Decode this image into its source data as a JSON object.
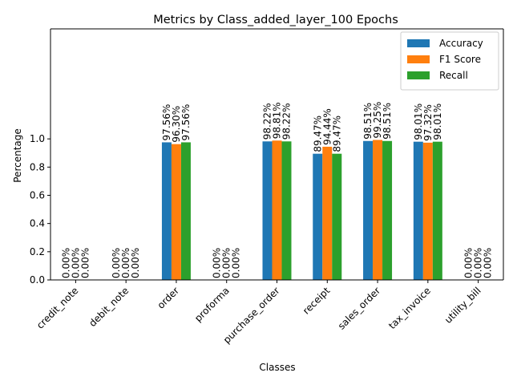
{
  "chart_data": {
    "type": "bar",
    "title": "Metrics by Class_added_layer_100 Epochs",
    "xlabel": "Classes",
    "ylabel": "Percentage",
    "ylim": [
      0,
      1.78
    ],
    "yticks": [
      0.0,
      0.2,
      0.4,
      0.6,
      0.8,
      1.0
    ],
    "ytick_labels": [
      "0.0",
      "0.2",
      "0.4",
      "0.6",
      "0.8",
      "1.0"
    ],
    "categories": [
      "credit_note",
      "debit_note",
      "order",
      "proforma",
      "purchase_order",
      "receipt",
      "sales_order",
      "tax_invoice",
      "utility_bill"
    ],
    "series": [
      {
        "name": "Accuracy",
        "color": "#1f77b4",
        "values": [
          0.0,
          0.0,
          0.9756,
          0.0,
          0.9822,
          0.8947,
          0.9851,
          0.9801,
          0.0
        ],
        "labels": [
          "0.00%",
          "0.00%",
          "97.56%",
          "0.00%",
          "98.22%",
          "89.47%",
          "98.51%",
          "98.01%",
          "0.00%"
        ]
      },
      {
        "name": "F1 Score",
        "color": "#ff7f0e",
        "values": [
          0.0,
          0.0,
          0.963,
          0.0,
          0.9881,
          0.9444,
          0.9925,
          0.9732,
          0.0
        ],
        "labels": [
          "0.00%",
          "0.00%",
          "96.30%",
          "0.00%",
          "98.81%",
          "94.44%",
          "99.25%",
          "97.32%",
          "0.00%"
        ]
      },
      {
        "name": "Recall",
        "color": "#2ca02c",
        "values": [
          0.0,
          0.0,
          0.9756,
          0.0,
          0.9822,
          0.8947,
          0.9851,
          0.9801,
          0.0
        ],
        "labels": [
          "0.00%",
          "0.00%",
          "97.56%",
          "0.00%",
          "98.22%",
          "89.47%",
          "98.51%",
          "98.01%",
          "0.00%"
        ]
      }
    ],
    "legend_position": "top-right",
    "grid": false
  }
}
